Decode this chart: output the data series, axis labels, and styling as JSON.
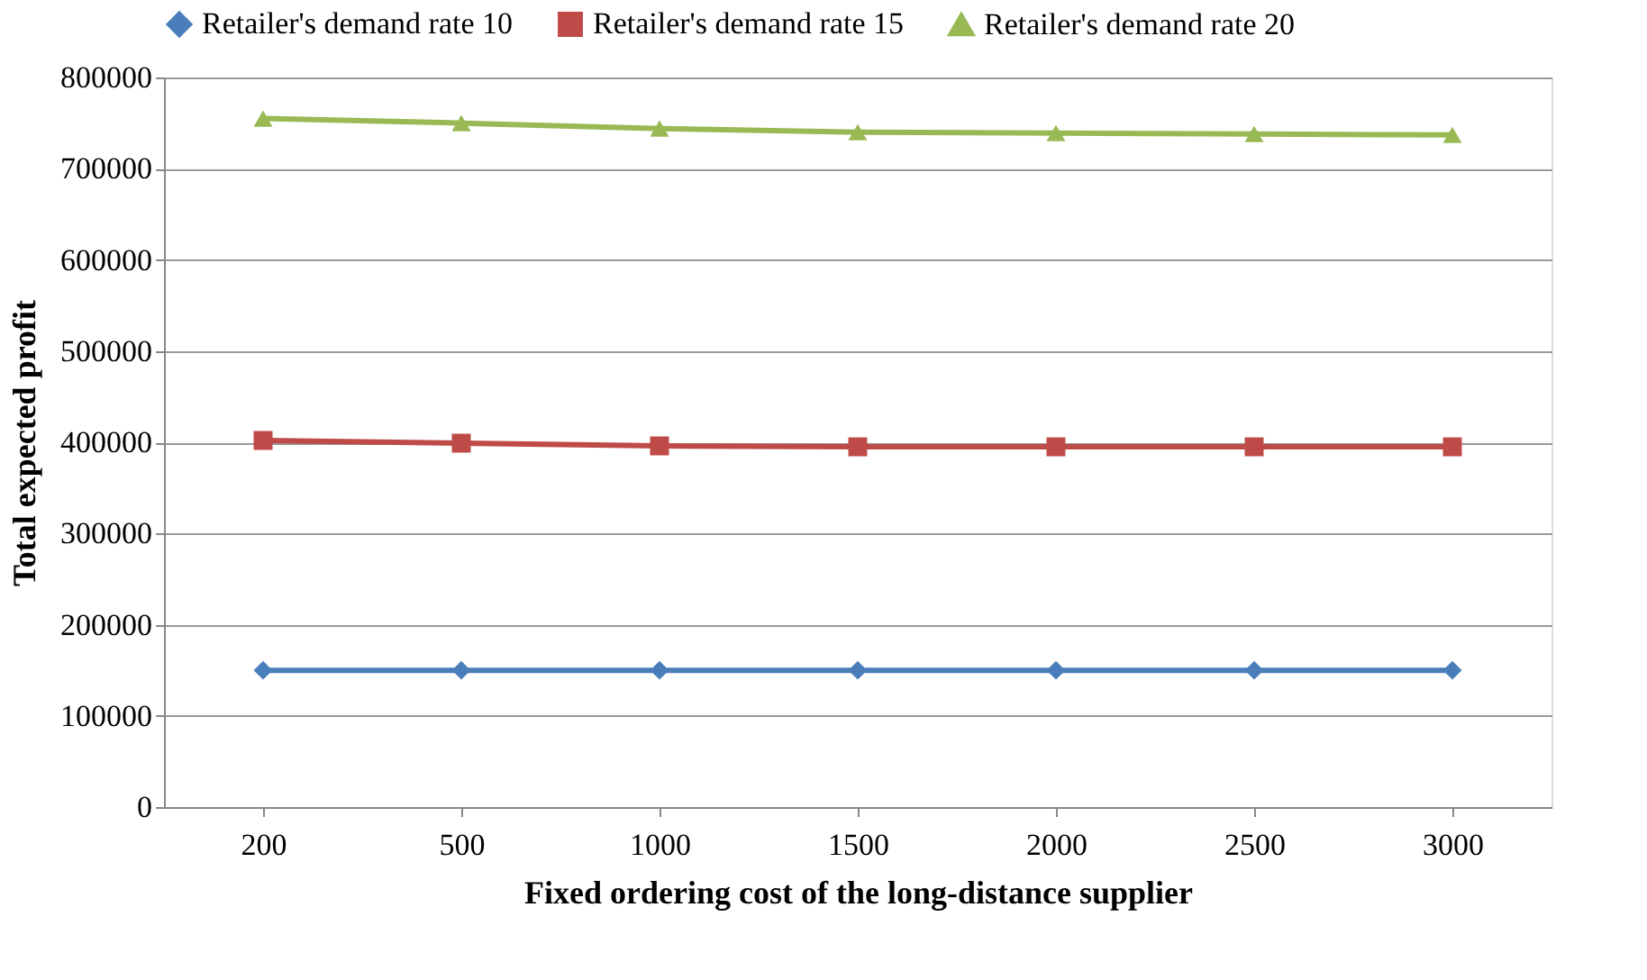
{
  "chart_data": {
    "type": "line",
    "xlabel": "Fixed ordering cost of the long-distance supplier",
    "ylabel": "Total expected profit",
    "categories": [
      "200",
      "500",
      "1000",
      "1500",
      "2000",
      "2500",
      "3000"
    ],
    "series": [
      {
        "name": "Retailer's demand rate 10",
        "color": "#4a7ebb",
        "marker": "diamond",
        "values": [
          150000,
          150000,
          150000,
          150000,
          150000,
          150000,
          150000
        ]
      },
      {
        "name": "Retailer's demand rate 15",
        "color": "#be4b48",
        "marker": "square",
        "values": [
          402000,
          399000,
          396000,
          395000,
          395000,
          395000,
          395000
        ]
      },
      {
        "name": "Retailer's demand rate 20",
        "color": "#98b954",
        "marker": "triangle",
        "values": [
          755000,
          750000,
          744000,
          740000,
          739000,
          738000,
          737000
        ]
      }
    ],
    "ylim": [
      0,
      800000
    ],
    "yticks": [
      0,
      100000,
      200000,
      300000,
      400000,
      500000,
      600000,
      700000,
      800000
    ],
    "grid": "y",
    "legend": "top",
    "line_style": "solid"
  }
}
